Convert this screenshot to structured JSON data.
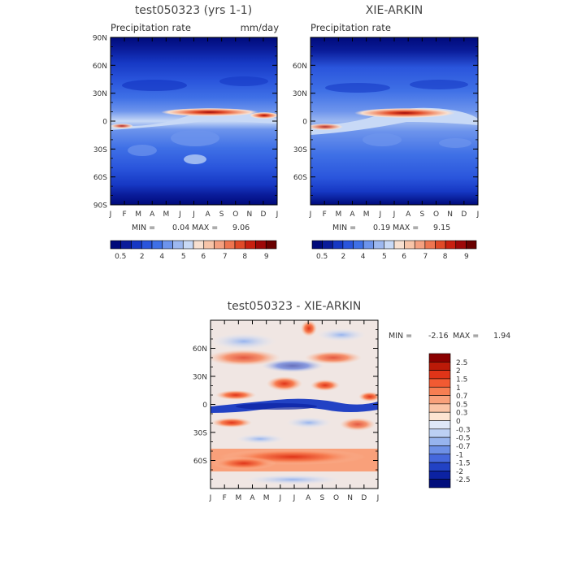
{
  "chart_data": [
    {
      "type": "heatmap",
      "title": "test050323 (yrs 1-1)",
      "subtitle_left": "Precipitation rate",
      "subtitle_right": "mm/day",
      "x_ticks": [
        "J",
        "F",
        "M",
        "A",
        "M",
        "J",
        "J",
        "A",
        "S",
        "O",
        "N",
        "D",
        "J"
      ],
      "y_ticks": [
        "90N",
        "60N",
        "30N",
        "0",
        "30S",
        "60S",
        "90S"
      ],
      "min_label": "MIN =",
      "min_value": "0.04",
      "max_label": "MAX =",
      "max_value": "9.06",
      "colorbar": {
        "labels": [
          "0.5",
          "2",
          "4",
          "5",
          "6",
          "7",
          "8",
          "9"
        ],
        "colors": [
          "#000a7a",
          "#0a1c9a",
          "#1638c4",
          "#2a55dc",
          "#3f70e6",
          "#6d94ec",
          "#9db8f0",
          "#c8d9f6",
          "#f8e0d0",
          "#f7c4a8",
          "#f4a080",
          "#ee7550",
          "#e04a28",
          "#c82010",
          "#9e0808",
          "#6a0000"
        ]
      }
    },
    {
      "type": "heatmap",
      "title": "XIE-ARKIN",
      "subtitle_left": "Precipitation rate",
      "x_ticks": [
        "J",
        "F",
        "M",
        "A",
        "M",
        "J",
        "J",
        "A",
        "S",
        "O",
        "N",
        "D",
        "J"
      ],
      "y_ticks": [
        "60N",
        "30N",
        "0",
        "30S",
        "60S"
      ],
      "min_label": "MIN =",
      "min_value": "0.19",
      "max_label": "MAX =",
      "max_value": "9.15",
      "colorbar": {
        "labels": [
          "0.5",
          "2",
          "4",
          "5",
          "6",
          "7",
          "8",
          "9"
        ],
        "colors": [
          "#000a7a",
          "#0a1c9a",
          "#1638c4",
          "#2a55dc",
          "#3f70e6",
          "#6d94ec",
          "#9db8f0",
          "#c8d9f6",
          "#f8e0d0",
          "#f7c4a8",
          "#f4a080",
          "#ee7550",
          "#e04a28",
          "#c82010",
          "#9e0808",
          "#6a0000"
        ]
      }
    },
    {
      "type": "heatmap",
      "title": "test050323 - XIE-ARKIN",
      "x_ticks": [
        "J",
        "F",
        "M",
        "A",
        "M",
        "J",
        "J",
        "A",
        "S",
        "O",
        "N",
        "D",
        "J"
      ],
      "y_ticks": [
        "60N",
        "30N",
        "0",
        "30S",
        "60S"
      ],
      "min_label": "MIN =",
      "min_value": "-2.16",
      "max_label": "MAX =",
      "max_value": "1.94",
      "colorbar": {
        "labels": [
          "2.5",
          "2",
          "1.5",
          "1",
          "0.7",
          "0.5",
          "0.3",
          "0",
          "-0.3",
          "-0.5",
          "-0.7",
          "-1",
          "-1.5",
          "-2",
          "-2.5"
        ],
        "colors": [
          "#8a0000",
          "#bb1a08",
          "#e03418",
          "#f25a32",
          "#f77e52",
          "#f9a07a",
          "#fbc4a6",
          "#fde4d2",
          "#dfe8f8",
          "#bcd0f4",
          "#97b4ee",
          "#6d90e6",
          "#4568dc",
          "#2242c4",
          "#0c22a2",
          "#020e7c"
        ]
      }
    }
  ]
}
